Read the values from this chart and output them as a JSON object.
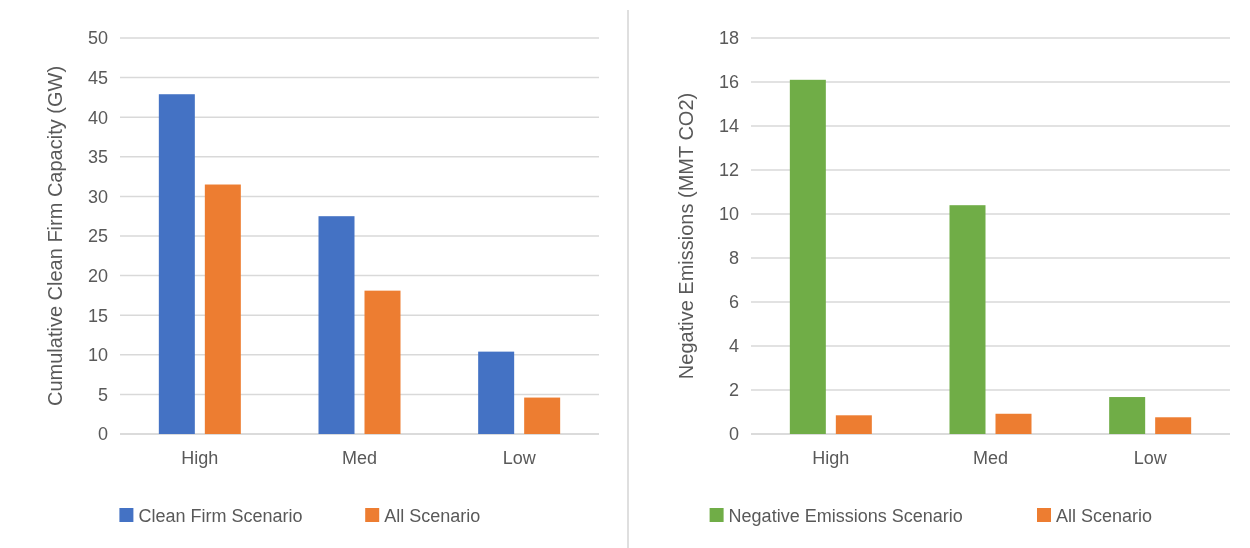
{
  "chart_data": [
    {
      "type": "bar",
      "ylabel": "Cumulative Clean Firm Capacity (GW)",
      "categories": [
        "High",
        "Med",
        "Low"
      ],
      "series": [
        {
          "name": "Clean Firm Scenario",
          "color": "#4472c4",
          "values": [
            42.9,
            27.5,
            10.4
          ]
        },
        {
          "name": "All Scenario",
          "color": "#ed7d31",
          "values": [
            31.5,
            18.1,
            4.6
          ]
        }
      ],
      "ylim": [
        0,
        50
      ],
      "yticks": [
        0,
        5,
        10,
        15,
        20,
        25,
        30,
        35,
        40,
        45,
        50
      ],
      "grid": "y",
      "legend": "bottom"
    },
    {
      "type": "bar",
      "ylabel": "Negative Emissions (MMT CO2)",
      "categories": [
        "High",
        "Med",
        "Low"
      ],
      "series": [
        {
          "name": "Negative Emissions Scenario",
          "color": "#70ad47",
          "values": [
            16.1,
            10.4,
            1.68
          ]
        },
        {
          "name": "All Scenario",
          "color": "#ed7d31",
          "values": [
            0.85,
            0.92,
            0.76
          ]
        }
      ],
      "ylim": [
        0,
        18
      ],
      "yticks": [
        0,
        2,
        4,
        6,
        8,
        10,
        12,
        14,
        16,
        18
      ],
      "grid": "y",
      "legend": "bottom"
    }
  ]
}
